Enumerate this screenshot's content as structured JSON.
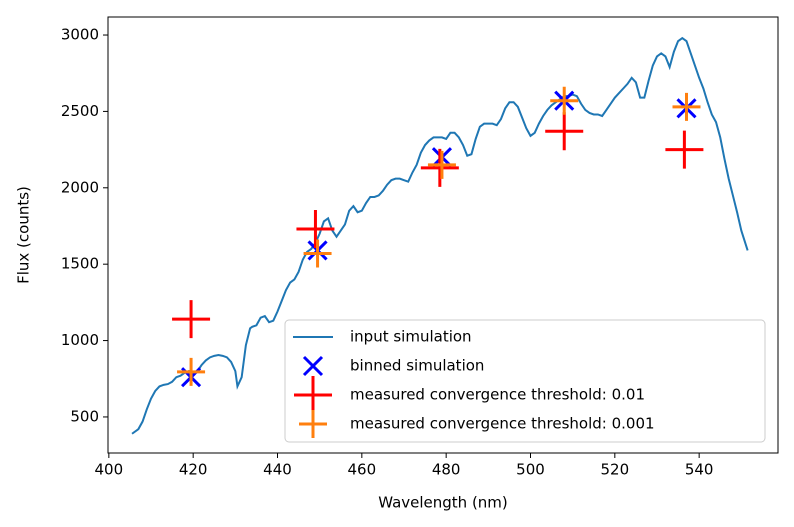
{
  "chart_data": {
    "type": "line",
    "x_label": "Wavelength (nm)",
    "y_label": "Flux (counts)",
    "xlim": [
      399.8,
      558.7
    ],
    "ylim": [
      264,
      3118
    ],
    "xticks": [
      400,
      420,
      440,
      460,
      480,
      500,
      520,
      540
    ],
    "yticks": [
      500,
      1000,
      1500,
      2000,
      2500,
      3000
    ],
    "legend": "lower right",
    "series": [
      {
        "name": "input simulation",
        "type": "line",
        "color": "#1f77b4",
        "x": [
          405.5,
          407,
          408,
          409,
          410,
          411,
          412,
          413,
          414,
          415,
          416,
          417,
          418,
          419,
          420,
          421,
          422,
          423,
          424,
          425,
          426,
          427,
          428,
          429,
          430,
          430.5,
          431.5,
          432.5,
          433.5,
          434,
          435,
          436,
          437,
          438,
          439,
          440,
          441,
          442,
          443,
          444,
          445,
          446,
          447,
          448,
          449,
          450,
          451,
          452,
          453,
          454,
          455,
          456,
          457,
          458,
          459,
          460,
          461,
          462,
          463,
          464,
          465,
          466,
          467,
          468,
          469,
          470,
          471,
          472,
          473,
          474,
          475,
          476,
          477,
          478,
          479,
          480,
          481,
          482,
          483,
          484,
          485,
          486,
          487,
          488,
          489,
          490,
          491,
          492,
          493,
          494,
          495,
          496,
          497,
          498,
          499,
          500,
          501,
          502,
          503,
          504,
          505,
          506,
          507,
          508,
          509,
          510,
          511,
          512,
          513,
          514,
          515,
          516,
          517,
          518,
          519,
          520,
          521,
          522,
          523,
          524,
          525,
          526,
          527,
          528,
          529,
          530,
          531,
          532,
          533,
          534,
          535,
          536,
          537,
          538,
          539,
          540,
          541,
          542,
          543,
          544,
          545,
          546,
          547,
          548,
          549,
          550,
          551.5
        ],
        "y": [
          390,
          420,
          470,
          550,
          620,
          670,
          700,
          710,
          715,
          730,
          760,
          770,
          790,
          800,
          790,
          800,
          840,
          870,
          890,
          900,
          905,
          900,
          890,
          860,
          800,
          700,
          760,
          970,
          1080,
          1090,
          1100,
          1150,
          1160,
          1120,
          1130,
          1190,
          1260,
          1330,
          1380,
          1400,
          1450,
          1530,
          1580,
          1600,
          1640,
          1700,
          1780,
          1800,
          1720,
          1680,
          1720,
          1760,
          1850,
          1880,
          1840,
          1850,
          1900,
          1940,
          1940,
          1950,
          1980,
          2020,
          2050,
          2060,
          2060,
          2050,
          2040,
          2100,
          2150,
          2230,
          2280,
          2310,
          2330,
          2330,
          2330,
          2320,
          2360,
          2360,
          2330,
          2280,
          2210,
          2220,
          2320,
          2400,
          2420,
          2420,
          2420,
          2410,
          2450,
          2520,
          2560,
          2560,
          2530,
          2460,
          2390,
          2340,
          2360,
          2420,
          2470,
          2510,
          2540,
          2560,
          2580,
          2600,
          2600,
          2610,
          2600,
          2550,
          2510,
          2490,
          2480,
          2480,
          2470,
          2510,
          2550,
          2590,
          2620,
          2650,
          2680,
          2720,
          2690,
          2590,
          2590,
          2700,
          2800,
          2860,
          2880,
          2860,
          2790,
          2890,
          2960,
          2980,
          2960,
          2880,
          2800,
          2720,
          2650,
          2560,
          2480,
          2430,
          2330,
          2190,
          2060,
          1950,
          1840,
          1720,
          1590
        ]
      },
      {
        "name": "binned simulation",
        "type": "scatter",
        "marker": "x",
        "color": "#0000ff",
        "x": [
          419.5,
          449.5,
          479,
          508,
          537
        ],
        "y": [
          760,
          1590,
          2200,
          2570,
          2520
        ]
      },
      {
        "name": "measured convergence threshold: 0.01",
        "type": "scatter",
        "marker": "+",
        "color": "#ff0000",
        "x": [
          419.5,
          449,
          478.5,
          508,
          536.5
        ],
        "y": [
          1140,
          1730,
          2130,
          2370,
          2250
        ]
      },
      {
        "name": "measured convergence threshold: 0.001",
        "type": "scatter",
        "marker": "+",
        "color": "#ff7f0e",
        "x": [
          419.5,
          449.5,
          479,
          508,
          537
        ],
        "y": [
          795,
          1570,
          2150,
          2570,
          2530
        ]
      }
    ]
  }
}
